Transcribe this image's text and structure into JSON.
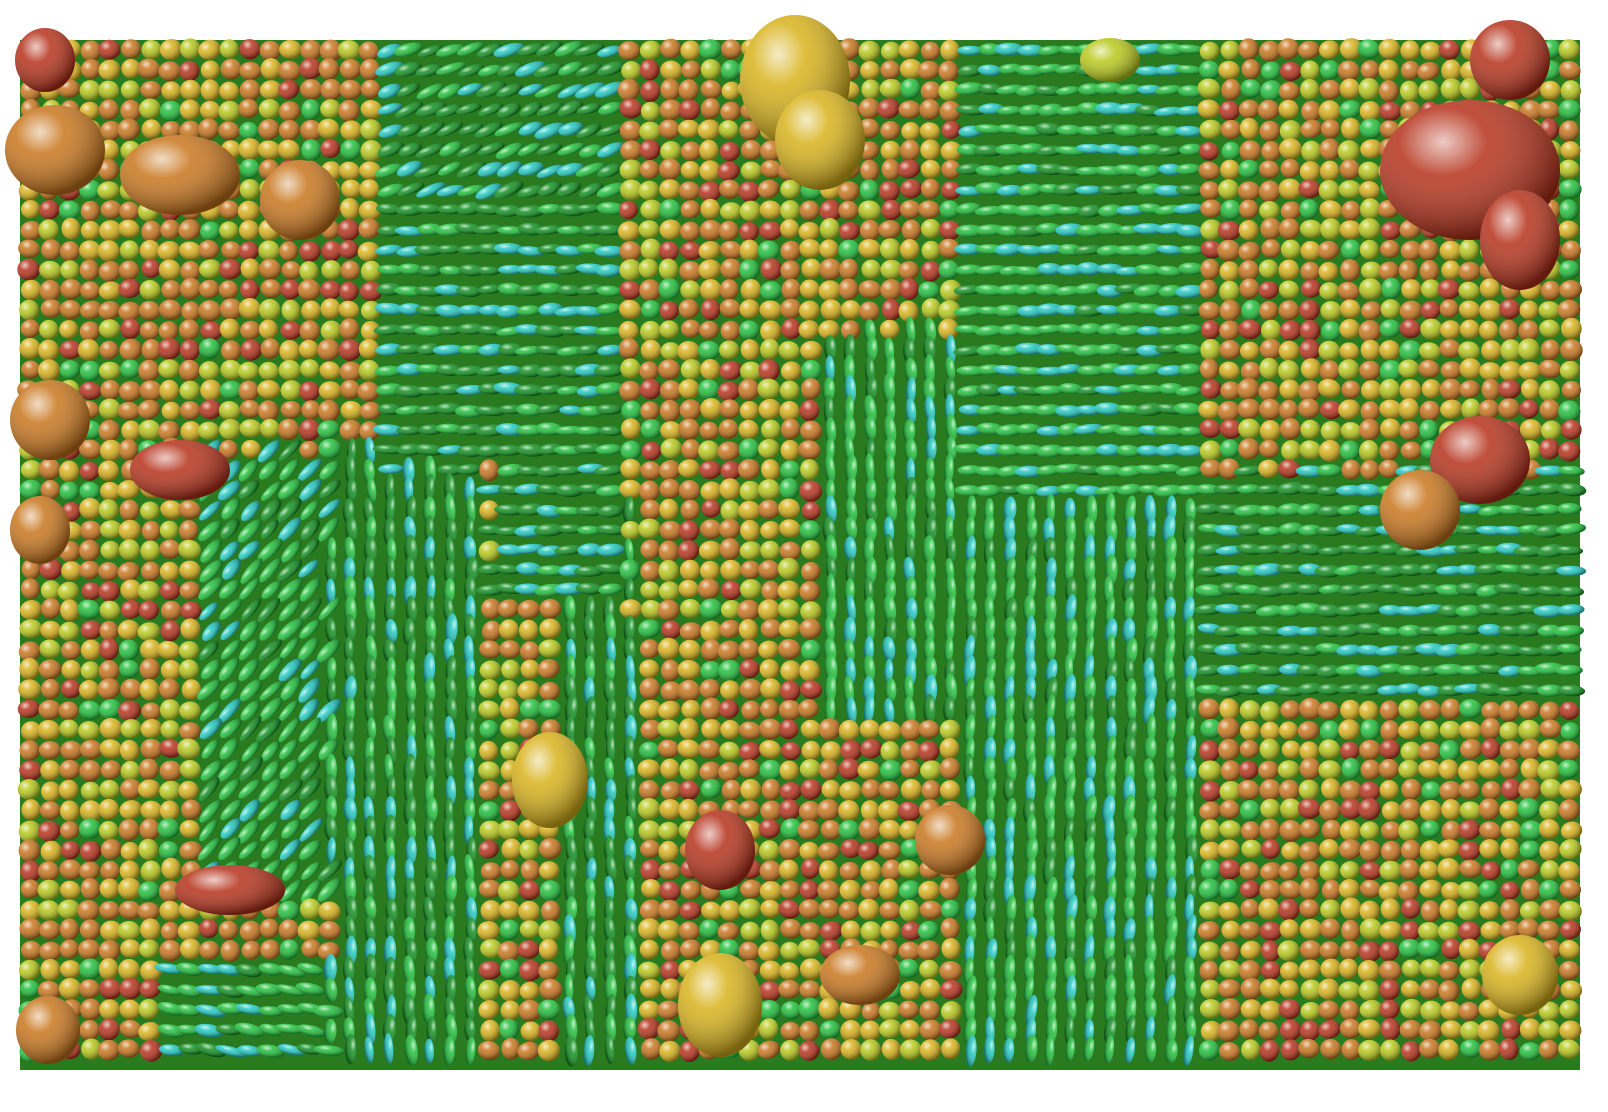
{
  "scene": {
    "description_free": true,
    "background_color": "#ffffff",
    "colormap": [
      "#4b0f9b",
      "#1f6fd1",
      "#20c8c0",
      "#1fbf3a",
      "#0f8f1f",
      "#b7c81a",
      "#d8b21a",
      "#c8751c",
      "#b5311a"
    ],
    "glyph_type": "ellipsoid",
    "text": []
  }
}
